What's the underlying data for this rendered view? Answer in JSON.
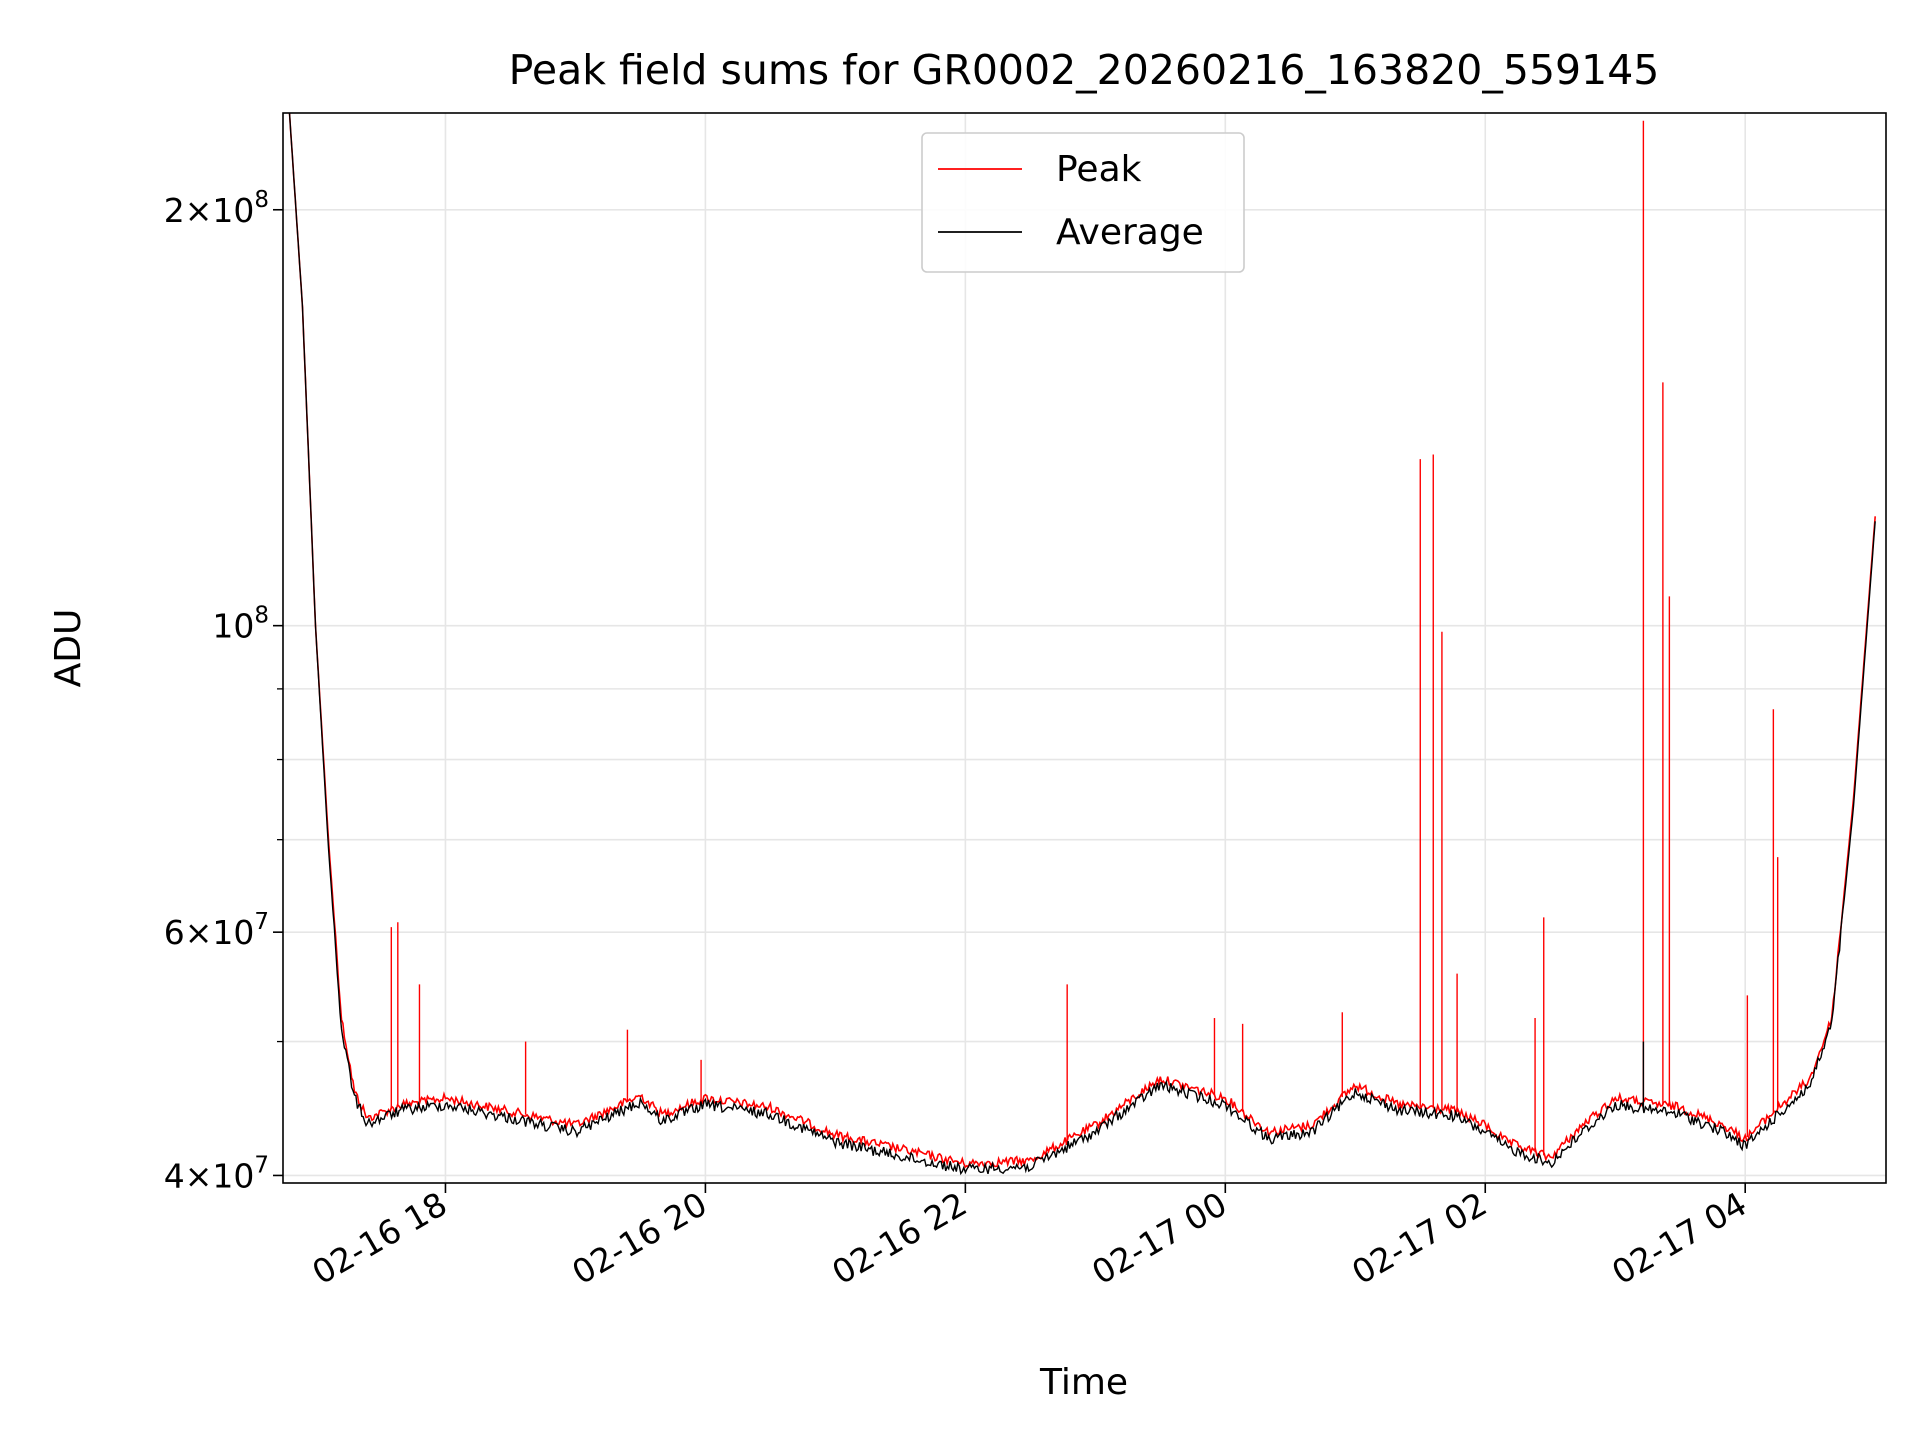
{
  "chart_data": {
    "type": "line",
    "title": "Peak field sums for GR0002_20260216_163820_559145",
    "xlabel": "Time",
    "ylabel": "ADU",
    "yscale": "log",
    "grid": true,
    "legend_position": "upper center",
    "xlim": [
      "2026-02-16 16:45",
      "2026-02-17 05:05"
    ],
    "ylim": [
      39500000,
      235000000
    ],
    "x_ticks": [
      {
        "value": "2026-02-16 18:00",
        "label": "02-16 18"
      },
      {
        "value": "2026-02-16 20:00",
        "label": "02-16 20"
      },
      {
        "value": "2026-02-16 22:00",
        "label": "02-16 22"
      },
      {
        "value": "2026-02-17 00:00",
        "label": "02-17 00"
      },
      {
        "value": "2026-02-17 02:00",
        "label": "02-17 02"
      },
      {
        "value": "2026-02-17 04:00",
        "label": "02-17 04"
      }
    ],
    "y_ticks": [
      {
        "value": 40000000,
        "base": "4",
        "exp": "7"
      },
      {
        "value": 60000000,
        "base": "6",
        "exp": "7"
      },
      {
        "value": 100000000,
        "base": "",
        "exp": "8"
      },
      {
        "value": 200000000,
        "base": "2",
        "exp": "8"
      }
    ],
    "y_minor_ticks": [
      50000000,
      70000000,
      80000000,
      90000000
    ],
    "series": [
      {
        "name": "Peak",
        "color": "#ff0000",
        "points": [
          [
            "2026-02-16 16:48",
            235000000
          ],
          [
            "2026-02-16 16:54",
            170000000
          ],
          [
            "2026-02-16 17:00",
            100000000
          ],
          [
            "2026-02-16 17:06",
            70000000
          ],
          [
            "2026-02-16 17:12",
            52000000
          ],
          [
            "2026-02-16 17:18",
            46000000
          ],
          [
            "2026-02-16 17:24",
            44000000
          ],
          [
            "2026-02-16 17:40",
            45000000
          ],
          [
            "2026-02-16 18:00",
            45500000
          ],
          [
            "2026-02-16 18:30",
            44500000
          ],
          [
            "2026-02-16 19:00",
            43500000
          ],
          [
            "2026-02-16 19:30",
            45700000
          ],
          [
            "2026-02-16 19:40",
            44300000
          ],
          [
            "2026-02-16 20:00",
            45500000
          ],
          [
            "2026-02-16 20:30",
            44800000
          ],
          [
            "2026-02-16 21:00",
            42800000
          ],
          [
            "2026-02-16 21:30",
            41800000
          ],
          [
            "2026-02-16 22:00",
            40800000
          ],
          [
            "2026-02-16 22:30",
            41000000
          ],
          [
            "2026-02-16 23:00",
            43500000
          ],
          [
            "2026-02-16 23:30",
            47000000
          ],
          [
            "2026-02-16 23:50",
            46000000
          ],
          [
            "2026-02-17 00:00",
            45500000
          ],
          [
            "2026-02-17 00:20",
            43000000
          ],
          [
            "2026-02-17 00:40",
            43500000
          ],
          [
            "2026-02-17 01:00",
            46500000
          ],
          [
            "2026-02-17 01:20",
            45000000
          ],
          [
            "2026-02-17 01:45",
            44600000
          ],
          [
            "2026-02-17 02:00",
            43500000
          ],
          [
            "2026-02-17 02:10",
            42300000
          ],
          [
            "2026-02-17 02:30",
            41200000
          ],
          [
            "2026-02-17 02:45",
            43500000
          ],
          [
            "2026-02-17 03:00",
            45500000
          ],
          [
            "2026-02-17 03:30",
            44800000
          ],
          [
            "2026-02-17 03:50",
            43500000
          ],
          [
            "2026-02-17 04:00",
            42500000
          ],
          [
            "2026-02-17 04:10",
            44000000
          ],
          [
            "2026-02-17 04:30",
            47000000
          ],
          [
            "2026-02-17 04:40",
            52000000
          ],
          [
            "2026-02-17 04:50",
            75000000
          ],
          [
            "2026-02-17 05:00",
            120000000
          ]
        ],
        "spikes": [
          [
            "2026-02-16 17:35",
            60500000
          ],
          [
            "2026-02-16 17:38",
            61000000
          ],
          [
            "2026-02-16 17:48",
            55000000
          ],
          [
            "2026-02-16 18:37",
            50000000
          ],
          [
            "2026-02-16 19:24",
            51000000
          ],
          [
            "2026-02-16 19:58",
            48500000
          ],
          [
            "2026-02-16 22:47",
            55000000
          ],
          [
            "2026-02-16 23:55",
            52000000
          ],
          [
            "2026-02-17 00:08",
            51500000
          ],
          [
            "2026-02-17 00:54",
            52500000
          ],
          [
            "2026-02-17 01:30",
            132000000
          ],
          [
            "2026-02-17 01:36",
            133000000
          ],
          [
            "2026-02-17 01:40",
            99000000
          ],
          [
            "2026-02-17 01:47",
            56000000
          ],
          [
            "2026-02-17 02:23",
            52000000
          ],
          [
            "2026-02-17 02:27",
            61500000
          ],
          [
            "2026-02-17 03:13",
            232000000
          ],
          [
            "2026-02-17 03:22",
            150000000
          ],
          [
            "2026-02-17 03:25",
            105000000
          ],
          [
            "2026-02-17 04:01",
            54000000
          ],
          [
            "2026-02-17 04:13",
            87000000
          ],
          [
            "2026-02-17 04:15",
            68000000
          ]
        ]
      },
      {
        "name": "Average",
        "color": "#000000",
        "points": [
          [
            "2026-02-16 16:48",
            235000000
          ],
          [
            "2026-02-16 16:54",
            170000000
          ],
          [
            "2026-02-16 17:00",
            100000000
          ],
          [
            "2026-02-16 17:06",
            69000000
          ],
          [
            "2026-02-16 17:12",
            51000000
          ],
          [
            "2026-02-16 17:18",
            45500000
          ],
          [
            "2026-02-16 17:24",
            43600000
          ],
          [
            "2026-02-16 17:40",
            44600000
          ],
          [
            "2026-02-16 18:00",
            45000000
          ],
          [
            "2026-02-16 18:30",
            44000000
          ],
          [
            "2026-02-16 19:00",
            43000000
          ],
          [
            "2026-02-16 19:30",
            45200000
          ],
          [
            "2026-02-16 19:40",
            43800000
          ],
          [
            "2026-02-16 20:00",
            45000000
          ],
          [
            "2026-02-16 20:30",
            44300000
          ],
          [
            "2026-02-16 21:00",
            42300000
          ],
          [
            "2026-02-16 21:30",
            41300000
          ],
          [
            "2026-02-16 22:00",
            40400000
          ],
          [
            "2026-02-16 22:30",
            40600000
          ],
          [
            "2026-02-16 23:00",
            43000000
          ],
          [
            "2026-02-16 23:30",
            46500000
          ],
          [
            "2026-02-16 23:50",
            45500000
          ],
          [
            "2026-02-17 00:00",
            45000000
          ],
          [
            "2026-02-17 00:20",
            42500000
          ],
          [
            "2026-02-17 00:40",
            43000000
          ],
          [
            "2026-02-17 01:00",
            46000000
          ],
          [
            "2026-02-17 01:20",
            44600000
          ],
          [
            "2026-02-17 01:45",
            44200000
          ],
          [
            "2026-02-17 02:00",
            43000000
          ],
          [
            "2026-02-17 02:10",
            41900000
          ],
          [
            "2026-02-17 02:30",
            40800000
          ],
          [
            "2026-02-17 02:45",
            43000000
          ],
          [
            "2026-02-17 03:00",
            45000000
          ],
          [
            "2026-02-17 03:30",
            44300000
          ],
          [
            "2026-02-17 03:50",
            43000000
          ],
          [
            "2026-02-17 04:00",
            42000000
          ],
          [
            "2026-02-17 04:10",
            43500000
          ],
          [
            "2026-02-17 04:30",
            46500000
          ],
          [
            "2026-02-17 04:40",
            51500000
          ],
          [
            "2026-02-17 04:50",
            74000000
          ],
          [
            "2026-02-17 05:00",
            119000000
          ]
        ],
        "spikes": [
          [
            "2026-02-17 03:13",
            50000000
          ]
        ]
      }
    ]
  }
}
